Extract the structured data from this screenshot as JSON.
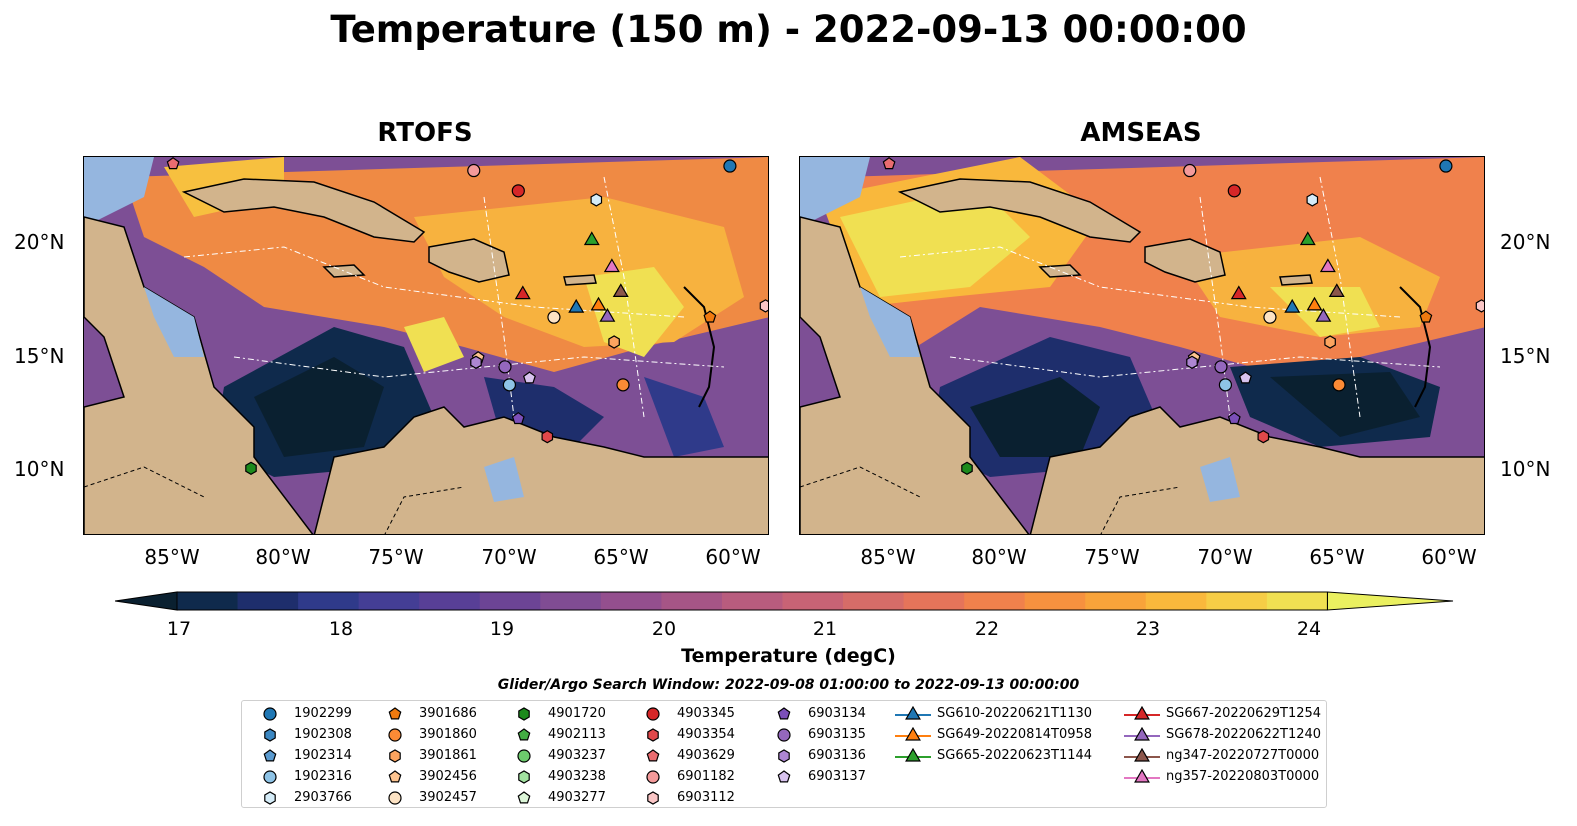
{
  "title": "Temperature (150 m) - 2022-09-13 00:00:00",
  "panels": [
    {
      "title": "RTOFS"
    },
    {
      "title": "AMSEAS"
    }
  ],
  "lat_labels": [
    "20°N",
    "15°N",
    "10°N"
  ],
  "lon_labels": [
    "85°W",
    "80°W",
    "75°W",
    "70°W",
    "65°W",
    "60°W"
  ],
  "colorbar": {
    "label": "Temperature (degC)",
    "ticks": [
      "17",
      "18",
      "19",
      "20",
      "21",
      "22",
      "23",
      "24"
    ],
    "min": 17,
    "max": 24.75,
    "step": 0.25,
    "colors": [
      "#0a2030",
      "#0f2a4c",
      "#1e2e6c",
      "#2f3a8a",
      "#443e95",
      "#583f96",
      "#6c4495",
      "#804c93",
      "#944f8e",
      "#a65586",
      "#b85c7e",
      "#c86375",
      "#d66c68",
      "#e5745a",
      "#f0814c",
      "#f6913f",
      "#f8a33a",
      "#f9b83c",
      "#f6cd46",
      "#f0e052",
      "#eaf060"
    ]
  },
  "legend": {
    "title": "Glider/Argo Search Window: 2022-09-08 01:00:00 to 2022-09-13 00:00:00",
    "items": [
      {
        "label": "1902299",
        "marker": "circle",
        "color": "#1f77b4"
      },
      {
        "label": "1902308",
        "marker": "hexagon",
        "color": "#3b87c2"
      },
      {
        "label": "1902314",
        "marker": "pentagon",
        "color": "#5b9bd0"
      },
      {
        "label": "1902316",
        "marker": "circle",
        "color": "#8ec3e6"
      },
      {
        "label": "2903766",
        "marker": "hexagon",
        "color": "#d5ecf8"
      },
      {
        "label": "3901686",
        "marker": "pentagon",
        "color": "#f07a0f"
      },
      {
        "label": "3901860",
        "marker": "circle",
        "color": "#fb8a35"
      },
      {
        "label": "3901861",
        "marker": "hexagon",
        "color": "#fca45f"
      },
      {
        "label": "3902456",
        "marker": "pentagon",
        "color": "#fdc490"
      },
      {
        "label": "3902457",
        "marker": "circle",
        "color": "#fde3c4"
      },
      {
        "label": "4901720",
        "marker": "hexagon",
        "color": "#1c8a1c"
      },
      {
        "label": "4902113",
        "marker": "pentagon",
        "color": "#43ad43"
      },
      {
        "label": "4903237",
        "marker": "circle",
        "color": "#6cc96c"
      },
      {
        "label": "4903238",
        "marker": "hexagon",
        "color": "#a2e2a0"
      },
      {
        "label": "4903277",
        "marker": "pentagon",
        "color": "#dcf6d8"
      },
      {
        "label": "4903345",
        "marker": "circle",
        "color": "#d62728"
      },
      {
        "label": "4903354",
        "marker": "hexagon",
        "color": "#e0484a"
      },
      {
        "label": "4903629",
        "marker": "pentagon",
        "color": "#ea6c70"
      },
      {
        "label": "6901182",
        "marker": "circle",
        "color": "#f49a9a"
      },
      {
        "label": "6903112",
        "marker": "hexagon",
        "color": "#fac6c6"
      },
      {
        "label": "6903134",
        "marker": "pentagon",
        "color": "#7b4fb8"
      },
      {
        "label": "6903135",
        "marker": "circle",
        "color": "#9467bd"
      },
      {
        "label": "6903136",
        "marker": "hexagon",
        "color": "#ad86d2"
      },
      {
        "label": "6903137",
        "marker": "pentagon",
        "color": "#d8c3ee"
      },
      {
        "label": "SG610-20220621T1130",
        "marker": "triangle-line",
        "color": "#1f77b4"
      },
      {
        "label": "SG649-20220814T0958",
        "marker": "triangle-line",
        "color": "#ff7f0e"
      },
      {
        "label": "SG665-20220623T1144",
        "marker": "triangle-line",
        "color": "#2ca02c"
      },
      {
        "label": "SG667-20220629T1254",
        "marker": "triangle-line",
        "color": "#d62728"
      },
      {
        "label": "SG678-20220622T1240",
        "marker": "triangle-line",
        "color": "#9467bd"
      },
      {
        "label": "ng347-20220727T0000",
        "marker": "triangle-line",
        "color": "#8c564b"
      },
      {
        "label": "ng357-20220803T0000",
        "marker": "triangle-line",
        "color": "#e377c2"
      }
    ]
  }
}
